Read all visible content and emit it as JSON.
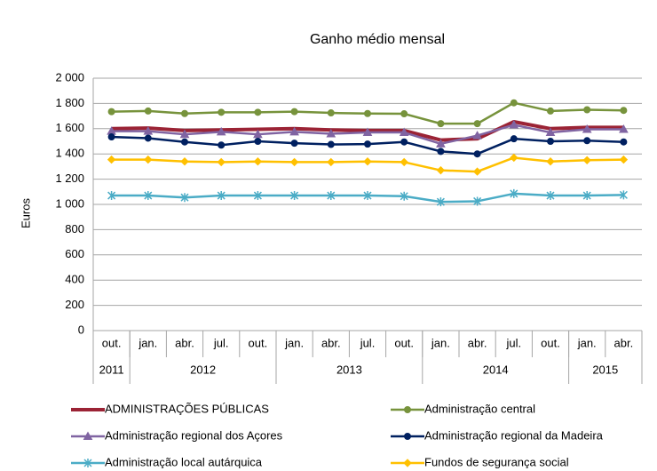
{
  "chart_data": {
    "type": "line",
    "title": "Ganho médio mensal",
    "y_label": "Euros",
    "categories": [
      "out.",
      "jan.",
      "abr.",
      "jul.",
      "out.",
      "jan.",
      "abr.",
      "jul.",
      "out.",
      "jan.",
      "abr.",
      "jul.",
      "out.",
      "jan.",
      "abr."
    ],
    "years": [
      "2011",
      "2012",
      "2013",
      "2014",
      "2015"
    ],
    "year_spans": [
      1,
      4,
      4,
      4,
      2
    ],
    "ylim": [
      0,
      2000
    ],
    "yticks": [
      0,
      200,
      400,
      600,
      800,
      {
        "value": 1000,
        "label": "1 000"
      },
      {
        "value": 1200,
        "label": "1 200"
      },
      {
        "value": 1400,
        "label": "1 400"
      },
      {
        "value": 1600,
        "label": "1 600"
      },
      {
        "value": 1800,
        "label": "1 800"
      },
      {
        "value": 2000,
        "label": "2 000"
      }
    ],
    "grid": true,
    "series": [
      {
        "name": "ADMINISTRAÇÕES PÚBLICAS",
        "color": "#9b2335",
        "marker": "none",
        "values": [
          1600,
          1605,
          1585,
          1590,
          1595,
          1600,
          1590,
          1585,
          1585,
          1510,
          1520,
          1655,
          1600,
          1610,
          1610
        ]
      },
      {
        "name": "Administração central",
        "color": "#77933c",
        "marker": "circle",
        "values": [
          1735,
          1740,
          1720,
          1730,
          1730,
          1735,
          1725,
          1720,
          1718,
          1640,
          1640,
          1805,
          1740,
          1750,
          1745
        ]
      },
      {
        "name": "Administração regional dos Açores",
        "color": "#8064a2",
        "marker": "triangle",
        "values": [
          1580,
          1580,
          1555,
          1575,
          1555,
          1575,
          1560,
          1570,
          1570,
          1480,
          1545,
          1630,
          1570,
          1595,
          1595
        ]
      },
      {
        "name": "Administração regional da Madeira",
        "color": "#002060",
        "marker": "circle",
        "values": [
          1535,
          1525,
          1495,
          1470,
          1500,
          1485,
          1475,
          1478,
          1495,
          1420,
          1400,
          1520,
          1500,
          1505,
          1495
        ]
      },
      {
        "name": "Administração local autárquica",
        "color": "#4bacc6",
        "marker": "star",
        "values": [
          1070,
          1070,
          1055,
          1070,
          1070,
          1070,
          1070,
          1070,
          1065,
          1020,
          1025,
          1085,
          1070,
          1070,
          1075
        ]
      },
      {
        "name": "Fundos de segurança social",
        "color": "#ffc000",
        "marker": "diamond",
        "values": [
          1355,
          1355,
          1340,
          1335,
          1340,
          1335,
          1335,
          1340,
          1335,
          1270,
          1260,
          1370,
          1340,
          1350,
          1355
        ]
      }
    ]
  }
}
